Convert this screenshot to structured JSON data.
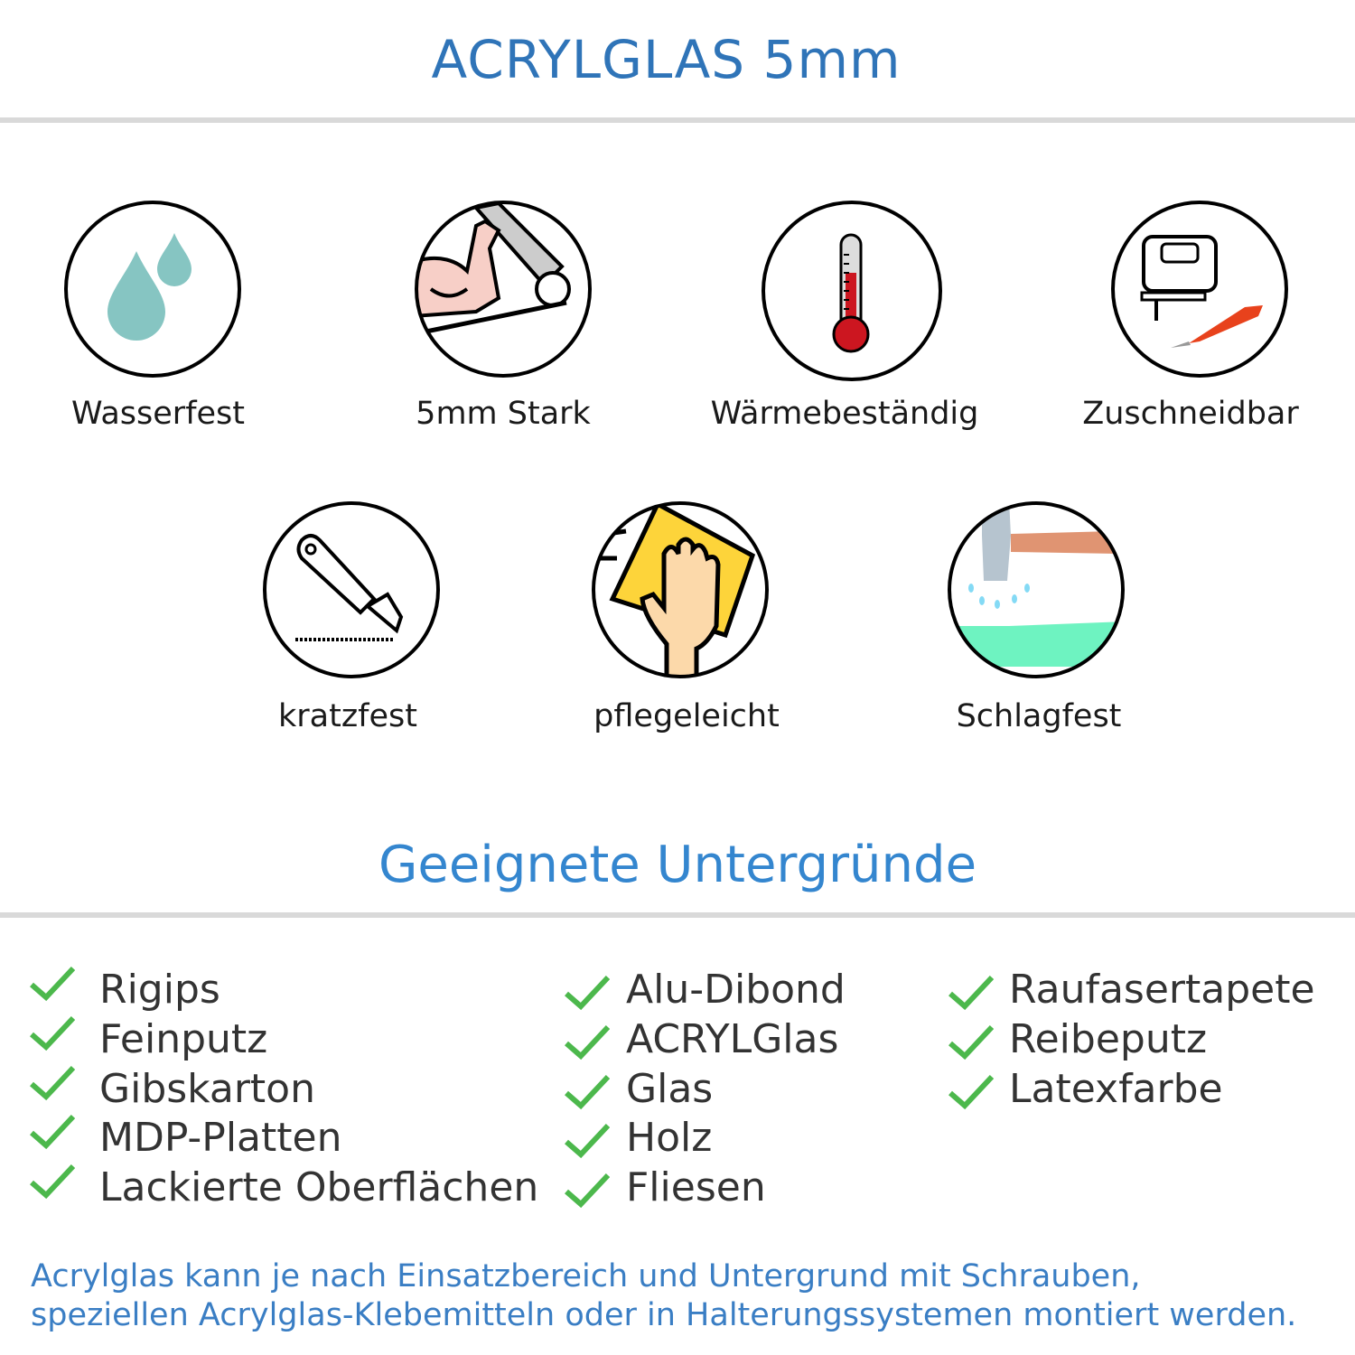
{
  "header": {
    "title": "ACRYLGLAS 5mm"
  },
  "features": [
    {
      "label": "Wasserfest",
      "icon": "water-drops-icon"
    },
    {
      "label": "5mm Stark",
      "icon": "strong-arm-icon"
    },
    {
      "label": "Wärmebeständig",
      "icon": "thermometer-icon"
    },
    {
      "label": "Zuschneidbar",
      "icon": "jigsaw-knife-icon"
    },
    {
      "label": "kratzfest",
      "icon": "cutter-knife-icon"
    },
    {
      "label": "pflegeleicht",
      "icon": "hand-sponge-icon"
    },
    {
      "label": "Schlagfest",
      "icon": "hammer-icon"
    }
  ],
  "surfaces": {
    "title": "Geeignete Untergründe",
    "columns": [
      [
        "Rigips",
        "Feinputz",
        "Gibskarton",
        "MDP-Platten",
        "Lackierte Oberflächen"
      ],
      [
        "Alu-Dibond",
        "ACRYLGlas",
        "Glas",
        "Holz",
        "Fliesen"
      ],
      [
        "Raufasertapete",
        "Reibeputz",
        "Latexfarbe"
      ]
    ],
    "check_color": "#4cb84c"
  },
  "footer": {
    "line1": "Acrylglas kann je nach Einsatzbereich und Untergrund mit Schrauben,",
    "line2": "speziellen Acrylglas-Klebemitteln oder in Halterungssystemen montiert werden."
  },
  "colors": {
    "title": "#2f74b8",
    "subtitle": "#3486cf",
    "footer": "#3a7ec4"
  }
}
